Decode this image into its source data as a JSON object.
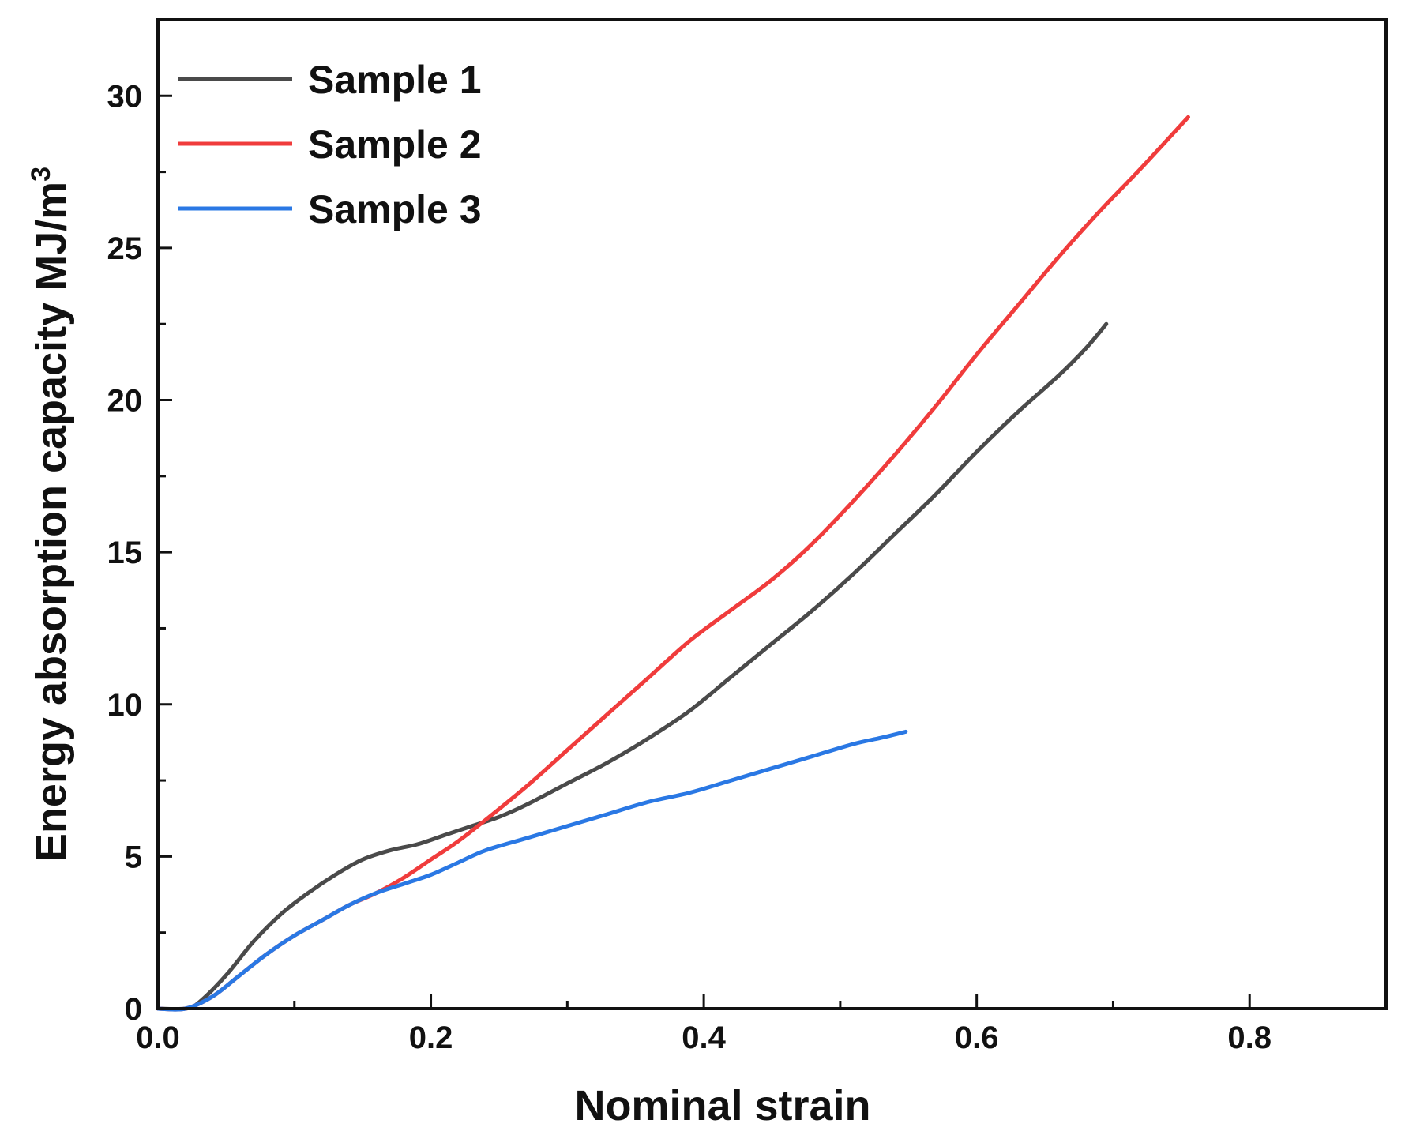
{
  "chart_data": {
    "type": "line",
    "title": "",
    "xlabel": "Nominal strain",
    "ylabel": "Energy absorption capacity MJ/m",
    "ylabel_superscript": "3",
    "xlim": [
      0,
      0.9
    ],
    "ylim": [
      0,
      32.5
    ],
    "xticks": [
      0.0,
      0.2,
      0.4,
      0.6,
      0.8
    ],
    "xtick_labels": [
      "0.0",
      "0.2",
      "0.4",
      "0.6",
      "0.8"
    ],
    "yticks": [
      0,
      5,
      10,
      15,
      20,
      25,
      30
    ],
    "ytick_labels": [
      "0",
      "5",
      "10",
      "15",
      "20",
      "25",
      "30"
    ],
    "grid": false,
    "legend_position": "top-left",
    "series": [
      {
        "name": "Sample 1",
        "color": "#4a4a4a",
        "x": [
          0.0,
          0.02,
          0.03,
          0.05,
          0.07,
          0.09,
          0.11,
          0.13,
          0.15,
          0.17,
          0.19,
          0.21,
          0.23,
          0.25,
          0.27,
          0.3,
          0.33,
          0.36,
          0.39,
          0.42,
          0.45,
          0.48,
          0.51,
          0.54,
          0.57,
          0.6,
          0.63,
          0.66,
          0.68,
          0.695
        ],
        "values": [
          0.0,
          0.0,
          0.2,
          1.1,
          2.2,
          3.1,
          3.8,
          4.4,
          4.9,
          5.2,
          5.4,
          5.7,
          6.0,
          6.3,
          6.7,
          7.4,
          8.1,
          8.9,
          9.8,
          10.9,
          12.0,
          13.1,
          14.3,
          15.6,
          16.9,
          18.3,
          19.6,
          20.8,
          21.7,
          22.5
        ]
      },
      {
        "name": "Sample 2",
        "color": "#f03c3c",
        "x": [
          0.0,
          0.02,
          0.04,
          0.06,
          0.08,
          0.1,
          0.12,
          0.14,
          0.16,
          0.18,
          0.2,
          0.22,
          0.24,
          0.27,
          0.3,
          0.33,
          0.36,
          0.39,
          0.42,
          0.45,
          0.48,
          0.51,
          0.54,
          0.57,
          0.6,
          0.63,
          0.66,
          0.69,
          0.72,
          0.755
        ],
        "values": [
          0.0,
          0.0,
          0.4,
          1.1,
          1.8,
          2.4,
          2.9,
          3.4,
          3.8,
          4.3,
          4.9,
          5.5,
          6.2,
          7.3,
          8.5,
          9.7,
          10.9,
          12.1,
          13.1,
          14.1,
          15.3,
          16.7,
          18.2,
          19.8,
          21.5,
          23.1,
          24.7,
          26.2,
          27.6,
          29.3
        ]
      },
      {
        "name": "Sample 3",
        "color": "#2a78e4",
        "x": [
          0.0,
          0.02,
          0.04,
          0.06,
          0.08,
          0.1,
          0.12,
          0.14,
          0.16,
          0.18,
          0.2,
          0.22,
          0.24,
          0.27,
          0.3,
          0.33,
          0.36,
          0.39,
          0.42,
          0.45,
          0.48,
          0.51,
          0.53,
          0.548
        ],
        "values": [
          0.0,
          0.0,
          0.4,
          1.1,
          1.8,
          2.4,
          2.9,
          3.4,
          3.8,
          4.1,
          4.4,
          4.8,
          5.2,
          5.6,
          6.0,
          6.4,
          6.8,
          7.1,
          7.5,
          7.9,
          8.3,
          8.7,
          8.9,
          9.1
        ]
      }
    ]
  }
}
